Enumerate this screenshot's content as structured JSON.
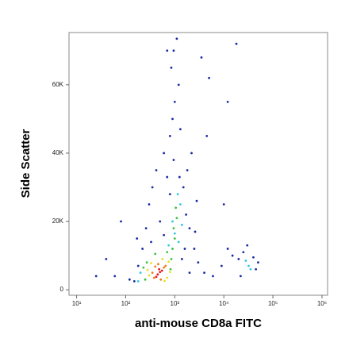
{
  "chart_data": {
    "type": "scatter",
    "x_label": "anti-mouse CD8a FITC",
    "y_label": "Side Scatter",
    "xscale": "log",
    "xlim": [
      7,
      1300000
    ],
    "xticks": [
      {
        "value": 10,
        "label": "10¹"
      },
      {
        "value": 100,
        "label": "10²"
      },
      {
        "value": 1000,
        "label": "10³"
      },
      {
        "value": 10000,
        "label": "10⁴"
      },
      {
        "value": 100000,
        "label": "10⁵"
      },
      {
        "value": 1000000,
        "label": "10⁶"
      }
    ],
    "ylim": [
      -1600,
      75300
    ],
    "yticks": [
      0,
      {
        "value": 20000,
        "label": "20K"
      },
      {
        "value": 40000,
        "label": "40K"
      },
      {
        "value": 60000,
        "label": "60K"
      }
    ],
    "series": [
      {
        "color": "#1a2aa0",
        "x": [
          150,
          120,
          180,
          220,
          260,
          300,
          350,
          420,
          600,
          800,
          900,
          1000,
          1200,
          850,
          950,
          1100,
          700,
          1500,
          1700,
          2000,
          2500,
          3000,
          4000,
          6000,
          9000,
          12000,
          15000,
          20000,
          25000,
          40000,
          45000,
          30000,
          22000,
          50000,
          60,
          80,
          1300,
          2200,
          5000,
          3500,
          700,
          18000,
          1800,
          600,
          500,
          1600,
          2800,
          800,
          10000,
          12000,
          25,
          40,
          170,
          2000,
          1400,
          2600,
          330,
          1250,
          950,
          4500
        ],
        "y": [
          2500,
          3000,
          7000,
          12000,
          18000,
          25000,
          30000,
          35000,
          40000,
          45000,
          50000,
          55000,
          60000,
          65000,
          70000,
          73500,
          33000,
          30000,
          22000,
          18000,
          12000,
          8000,
          5000,
          4000,
          7000,
          12000,
          10000,
          9000,
          11000,
          9500,
          6000,
          13000,
          4000,
          8000,
          4000,
          20000,
          47000,
          40000,
          62000,
          68000,
          70000,
          72000,
          35000,
          16000,
          20000,
          12000,
          26000,
          28000,
          25000,
          55000,
          4000,
          9000,
          15000,
          5000,
          9000,
          17000,
          14000,
          33000,
          38000,
          45000
        ]
      },
      {
        "color": "#30c8e0",
        "x": [
          200,
          1200,
          1300,
          900,
          1150,
          32000,
          28000,
          35000,
          180,
          1000,
          750,
          1400
        ],
        "y": [
          5000,
          14000,
          25000,
          20000,
          28000,
          7000,
          8500,
          6000,
          2500,
          16500,
          13000,
          19000
        ]
      },
      {
        "color": "#3cc040",
        "x": [
          250,
          850,
          900,
          230,
          1000,
          950,
          700,
          1100,
          820,
          400,
          270,
          1050
        ],
        "y": [
          3000,
          9000,
          12000,
          6500,
          15000,
          18000,
          11000,
          21000,
          6000,
          10500,
          8000,
          24000
        ]
      },
      {
        "color": "#e8e020",
        "x": [
          300,
          700,
          330,
          750,
          560,
          280,
          620,
          800
        ],
        "y": [
          4200,
          3500,
          7800,
          8200,
          9000,
          5800,
          2600,
          5200
        ]
      },
      {
        "color": "#f07a1a",
        "x": [
          380,
          600,
          520,
          350,
          650,
          460,
          400
        ],
        "y": [
          3500,
          6500,
          3000,
          5000,
          7000,
          7500,
          6800
        ]
      },
      {
        "color": "#e8141c",
        "x": [
          450,
          500,
          420,
          550,
          480
        ],
        "y": [
          4500,
          5200,
          3800,
          5600,
          6000
        ]
      }
    ]
  }
}
